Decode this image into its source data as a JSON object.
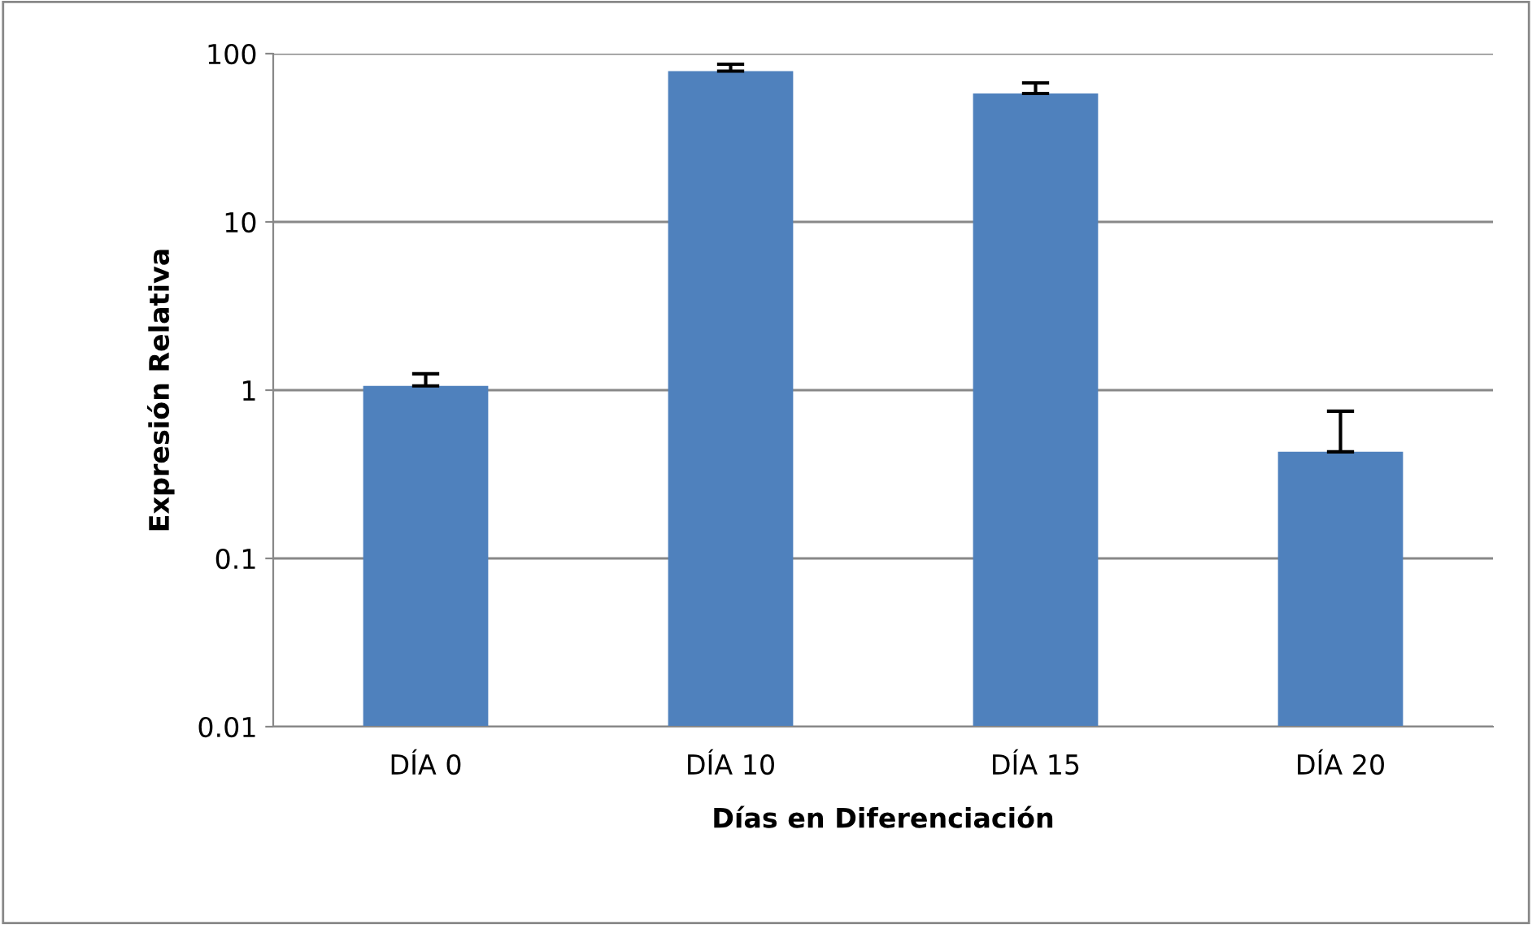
{
  "chart_data": {
    "type": "bar",
    "xlabel": "Días en Diferenciación",
    "ylabel": "Expresión Relativa",
    "categories": [
      "DÍA 0",
      "DÍA 10",
      "DÍA 15",
      "DÍA 20"
    ],
    "values": [
      1.06,
      78.7,
      58,
      0.43
    ],
    "errors": [
      [
        1.06,
        1.25
      ],
      [
        78.7,
        86.5
      ],
      [
        58,
        67
      ],
      [
        0.43,
        0.75
      ]
    ],
    "color": "#4f81bd",
    "log": "y",
    "ylim": [
      0.01,
      100
    ],
    "yticks": [
      {
        "value": 0.01,
        "label": "0.01"
      },
      {
        "value": 0.1,
        "label": "0.1"
      },
      1,
      10,
      100
    ],
    "grid": "y",
    "legend": false
  }
}
